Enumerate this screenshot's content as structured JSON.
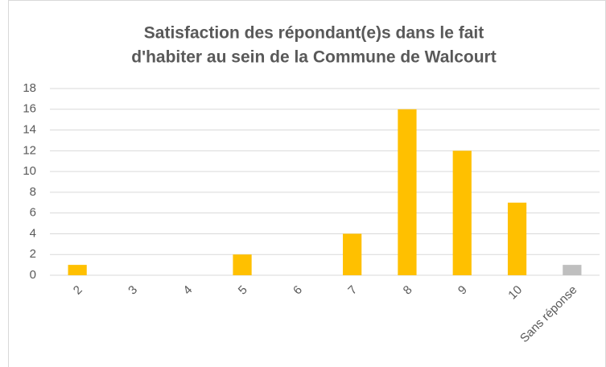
{
  "chart_data": {
    "type": "bar",
    "title": [
      "Satisfaction des répondant(e)s dans le fait",
      "d'habiter au sein de la Commune de Walcourt"
    ],
    "categories": [
      "2",
      "3",
      "4",
      "5",
      "6",
      "7",
      "8",
      "9",
      "10",
      "Sans réponse"
    ],
    "values": [
      1,
      0,
      0,
      2,
      0,
      4,
      16,
      12,
      7,
      1
    ],
    "colors": [
      "#ffc000",
      "#ffc000",
      "#ffc000",
      "#ffc000",
      "#ffc000",
      "#ffc000",
      "#ffc000",
      "#ffc000",
      "#ffc000",
      "#bfbfbf"
    ],
    "ylim": [
      0,
      18
    ],
    "yticks": [
      0,
      2,
      4,
      6,
      8,
      10,
      12,
      14,
      16,
      18
    ],
    "grid": true
  }
}
